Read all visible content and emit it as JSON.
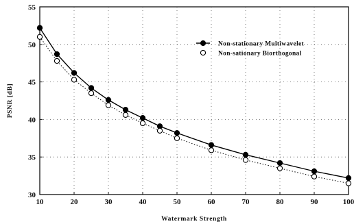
{
  "chart_data": {
    "type": "line",
    "title": "",
    "xlabel": "Watermark Strength",
    "ylabel": "PSNR [dB]",
    "xlim": [
      10,
      100
    ],
    "ylim": [
      30,
      55
    ],
    "xticks": [
      10,
      20,
      30,
      40,
      50,
      60,
      70,
      80,
      90,
      100
    ],
    "yticks": [
      30,
      35,
      40,
      45,
      50,
      55
    ],
    "grid": "dotted",
    "legend_position": "upper-right",
    "x": [
      10,
      15,
      20,
      25,
      30,
      35,
      40,
      45,
      50,
      60,
      70,
      80,
      90,
      100
    ],
    "series": [
      {
        "name": "Non-stationary Multiwavelet",
        "marker": "filled-circle",
        "line": "solid",
        "color": "#000000",
        "values": [
          52.2,
          48.7,
          46.2,
          44.2,
          42.6,
          41.3,
          40.2,
          39.1,
          38.2,
          36.6,
          35.3,
          34.2,
          33.1,
          32.2
        ]
      },
      {
        "name": "Non-sationary Biorthogonal",
        "marker": "open-circle",
        "line": "dotted",
        "color": "#000000",
        "values": [
          51.0,
          47.8,
          45.3,
          43.5,
          41.9,
          40.6,
          39.5,
          38.5,
          37.5,
          35.9,
          34.6,
          33.5,
          32.4,
          31.5
        ]
      }
    ]
  }
}
